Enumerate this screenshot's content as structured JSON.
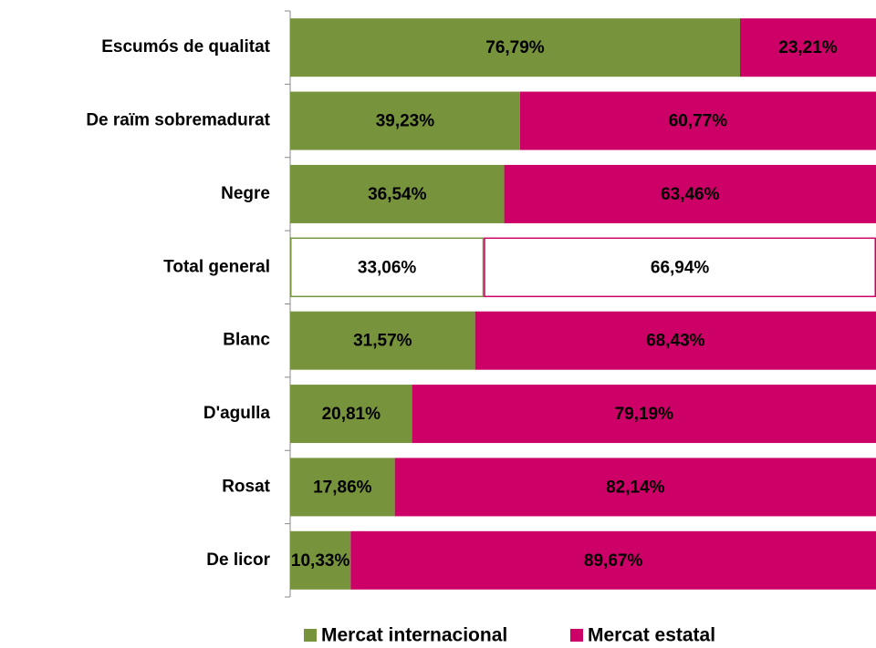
{
  "chart_data": {
    "type": "stacked-bar-horizontal",
    "categories": [
      "Escumós de qualitat",
      "De raïm sobremadurat",
      "Negre",
      "Total general",
      "Blanc",
      "D'agulla",
      "Rosat",
      "De licor"
    ],
    "series": [
      {
        "name": "Mercat internacional",
        "color": "#77933c",
        "values": [
          76.79,
          39.23,
          36.54,
          33.06,
          31.57,
          20.81,
          17.86,
          10.33
        ],
        "value_labels": [
          "76,79%",
          "39,23%",
          "36,54%",
          "33,06%",
          "31,57%",
          "20,81%",
          "17,86%",
          "10,33%"
        ]
      },
      {
        "name": "Mercat estatal",
        "color": "#cc0066",
        "values": [
          23.21,
          60.77,
          63.46,
          66.94,
          68.43,
          79.19,
          82.14,
          89.67
        ],
        "value_labels": [
          "23,21%",
          "60,77%",
          "63,46%",
          "66,94%",
          "68,43%",
          "79,19%",
          "82,14%",
          "89,67%"
        ]
      }
    ],
    "xlim": [
      0,
      100
    ],
    "outlined_categories": [
      3
    ],
    "legend": "bottom"
  }
}
